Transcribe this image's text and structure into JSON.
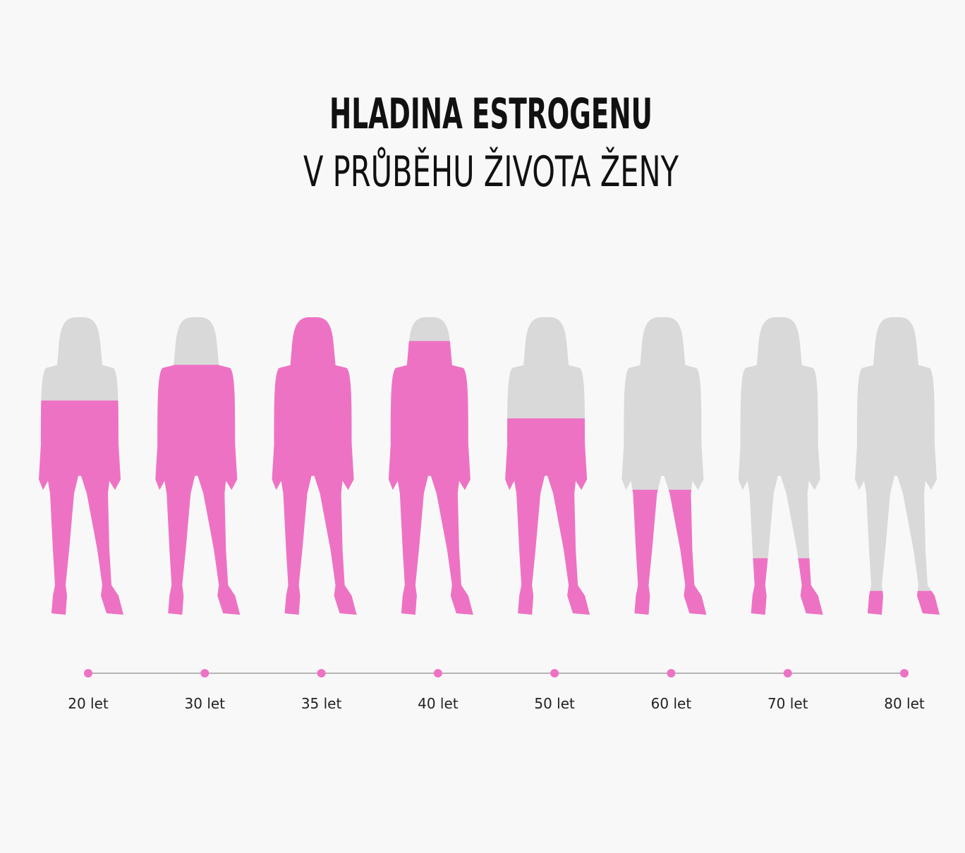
{
  "chart_data": {
    "type": "pictogram",
    "title": "HLADINA ESTROGENU",
    "subtitle": "V PRŮBĚHU ŽIVOTA ŽENY",
    "categories": [
      "20 let",
      "30 let",
      "35 let",
      "40 let",
      "50 let",
      "60 let",
      "70 let",
      "80 let"
    ],
    "values": [
      72,
      84,
      100,
      92,
      66,
      42,
      19,
      8
    ],
    "color": "#ee72c4"
  }
}
